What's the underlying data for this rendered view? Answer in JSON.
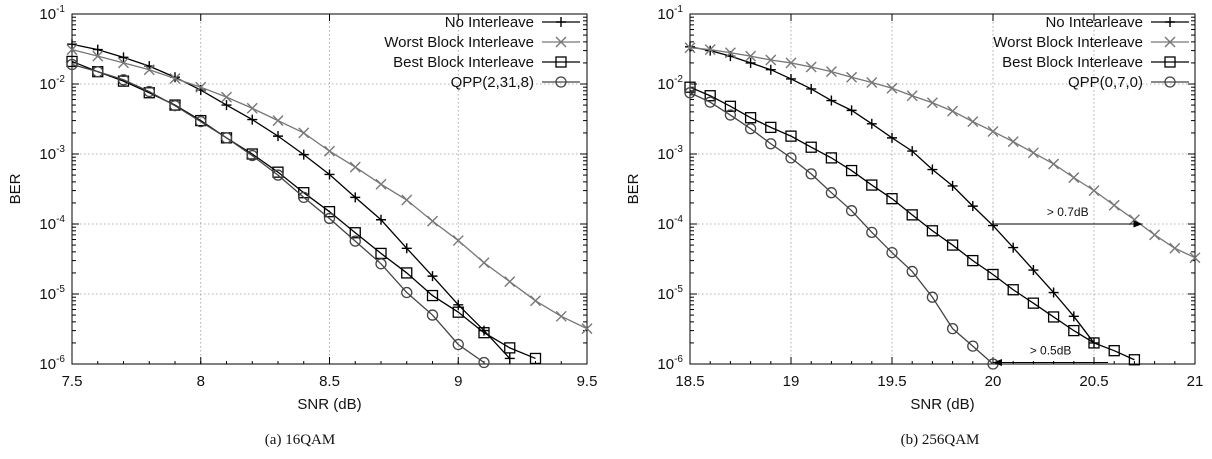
{
  "chart_data": [
    {
      "type": "line",
      "caption": "(a) 16QAM",
      "xlabel": "SNR (dB)",
      "ylabel": "BER",
      "xlim": [
        7.5,
        9.5
      ],
      "ylim": [
        1e-06,
        0.1
      ],
      "yscale": "log",
      "xticks": [
        "7.5",
        "8",
        "8.5",
        "9",
        "9.5"
      ],
      "yticks": [
        {
          "base": "10",
          "exp": "-6"
        },
        {
          "base": "10",
          "exp": "-5"
        },
        {
          "base": "10",
          "exp": "-4"
        },
        {
          "base": "10",
          "exp": "-3"
        },
        {
          "base": "10",
          "exp": "-2"
        },
        {
          "base": "10",
          "exp": "-1"
        }
      ],
      "grid": "dotted",
      "legend_position": "top-right",
      "series": [
        {
          "name": "No Interleave",
          "color": "#000000",
          "marker": "plus",
          "x": [
            7.5,
            7.6,
            7.7,
            7.8,
            7.9,
            8.0,
            8.1,
            8.2,
            8.3,
            8.4,
            8.5,
            8.6,
            8.7,
            8.8,
            8.9,
            9.0,
            9.1,
            9.2
          ],
          "y": [
            0.037,
            0.031,
            0.024,
            0.018,
            0.0125,
            0.0082,
            0.005,
            0.0031,
            0.0018,
            0.00098,
            0.00051,
            0.00024,
            0.000115,
            4.5e-05,
            1.8e-05,
            7e-06,
            3e-06,
            1.2e-06
          ]
        },
        {
          "name": "Worst Block Interleave",
          "color": "#777777",
          "marker": "cross",
          "x": [
            7.5,
            7.6,
            7.7,
            7.8,
            7.9,
            8.0,
            8.1,
            8.2,
            8.3,
            8.4,
            8.5,
            8.6,
            8.7,
            8.8,
            8.9,
            9.0,
            9.1,
            9.2,
            9.3,
            9.4,
            9.5
          ],
          "y": [
            0.031,
            0.025,
            0.02,
            0.016,
            0.012,
            0.009,
            0.0065,
            0.0045,
            0.003,
            0.002,
            0.0011,
            0.00065,
            0.00037,
            0.00022,
            0.00011,
            5.8e-05,
            2.8e-05,
            1.5e-05,
            8e-06,
            4.8e-06,
            3.2e-06
          ]
        },
        {
          "name": "Best Block Interleave",
          "color": "#000000",
          "marker": "square",
          "x": [
            7.5,
            7.6,
            7.7,
            7.8,
            7.9,
            8.0,
            8.1,
            8.2,
            8.3,
            8.4,
            8.5,
            8.6,
            8.7,
            8.8,
            8.9,
            9.0,
            9.1,
            9.2,
            9.3
          ],
          "y": [
            0.021,
            0.015,
            0.011,
            0.0075,
            0.005,
            0.003,
            0.0017,
            0.001,
            0.00055,
            0.00028,
            0.00015,
            7.5e-05,
            3.8e-05,
            2e-05,
            9.5e-06,
            5.5e-06,
            2.8e-06,
            1.7e-06,
            1.2e-06
          ]
        },
        {
          "name": "QPP(2,31,8)",
          "color": "#444444",
          "marker": "circle",
          "x": [
            7.5,
            7.6,
            7.7,
            7.8,
            7.9,
            8.0,
            8.1,
            8.2,
            8.3,
            8.4,
            8.5,
            8.6,
            8.7,
            8.8,
            8.9,
            9.0,
            9.1
          ],
          "y": [
            0.019,
            0.015,
            0.0115,
            0.0078,
            0.0049,
            0.0029,
            0.0017,
            0.00095,
            0.0005,
            0.00024,
            0.00012,
            5.7e-05,
            2.7e-05,
            1.05e-05,
            5e-06,
            1.9e-06,
            1.05e-06
          ]
        }
      ],
      "annotations": []
    },
    {
      "type": "line",
      "caption": "(b) 256QAM",
      "xlabel": "SNR (dB)",
      "ylabel": "BER",
      "xlim": [
        18.5,
        21
      ],
      "ylim": [
        1e-06,
        0.1
      ],
      "yscale": "log",
      "xticks": [
        "18.5",
        "19",
        "19.5",
        "20",
        "20.5",
        "21"
      ],
      "yticks": [
        {
          "base": "10",
          "exp": "-6"
        },
        {
          "base": "10",
          "exp": "-5"
        },
        {
          "base": "10",
          "exp": "-4"
        },
        {
          "base": "10",
          "exp": "-3"
        },
        {
          "base": "10",
          "exp": "-2"
        },
        {
          "base": "10",
          "exp": "-1"
        }
      ],
      "grid": "dotted",
      "legend_position": "top-right",
      "series": [
        {
          "name": "No Intearleave",
          "color": "#000000",
          "marker": "plus",
          "x": [
            18.5,
            18.6,
            18.7,
            18.8,
            18.9,
            19.0,
            19.1,
            19.2,
            19.3,
            19.4,
            19.5,
            19.6,
            19.7,
            19.8,
            19.9,
            20.0,
            20.1,
            20.2,
            20.3,
            20.4,
            20.5
          ],
          "y": [
            0.034,
            0.03,
            0.025,
            0.02,
            0.016,
            0.0118,
            0.0085,
            0.0058,
            0.0042,
            0.0027,
            0.0017,
            0.0011,
            0.0006,
            0.00035,
            0.00018,
            9.5e-05,
            4.6e-05,
            2.2e-05,
            1.05e-05,
            4.8e-06,
            2e-06
          ]
        },
        {
          "name": "Worst Block Interleave",
          "color": "#777777",
          "marker": "cross",
          "x": [
            18.5,
            18.6,
            18.7,
            18.8,
            18.9,
            19.0,
            19.1,
            19.2,
            19.3,
            19.4,
            19.5,
            19.6,
            19.7,
            19.8,
            19.9,
            20.0,
            20.1,
            20.2,
            20.3,
            20.4,
            20.5,
            20.6,
            20.7,
            20.8,
            20.9,
            21.0
          ],
          "y": [
            0.033,
            0.031,
            0.028,
            0.025,
            0.022,
            0.02,
            0.0175,
            0.015,
            0.0125,
            0.0105,
            0.0087,
            0.0068,
            0.0054,
            0.0041,
            0.0029,
            0.0021,
            0.0015,
            0.00104,
            0.00072,
            0.00046,
            0.0003,
            0.000185,
            0.000115,
            7e-05,
            4.5e-05,
            3.3e-05
          ]
        },
        {
          "name": "Best Block Interleave",
          "color": "#000000",
          "marker": "square",
          "x": [
            18.5,
            18.6,
            18.7,
            18.8,
            18.9,
            19.0,
            19.1,
            19.2,
            19.3,
            19.4,
            19.5,
            19.6,
            19.7,
            19.8,
            19.9,
            20.0,
            20.1,
            20.2,
            20.3,
            20.4,
            20.5,
            20.6,
            20.7
          ],
          "y": [
            0.009,
            0.0068,
            0.0048,
            0.0033,
            0.0024,
            0.0018,
            0.00125,
            0.00088,
            0.00058,
            0.00036,
            0.00023,
            0.000135,
            8e-05,
            5e-05,
            3e-05,
            1.9e-05,
            1.15e-05,
            7.4e-06,
            4.7e-06,
            3e-06,
            2e-06,
            1.55e-06,
            1.15e-06
          ]
        },
        {
          "name": "QPP(0,7,0)",
          "color": "#444444",
          "marker": "circle",
          "x": [
            18.5,
            18.6,
            18.7,
            18.8,
            18.9,
            19.0,
            19.1,
            19.2,
            19.3,
            19.4,
            19.5,
            19.6,
            19.7,
            19.8,
            19.9,
            20.0
          ],
          "y": [
            0.0075,
            0.0055,
            0.0036,
            0.0023,
            0.0014,
            0.00088,
            0.00052,
            0.00028,
            0.000155,
            7.6e-05,
            3.9e-05,
            2.1e-05,
            9e-06,
            3.2e-06,
            1.8e-06,
            1e-06
          ]
        }
      ],
      "annotations": [
        {
          "text": "> 0.7dB",
          "x_from": 20.0,
          "x_to": 20.74,
          "y": 0.0001
        },
        {
          "text": "> 0.5dB",
          "x_from": 20.57,
          "x_to": 20.0,
          "y": 1.05e-06
        }
      ]
    }
  ]
}
